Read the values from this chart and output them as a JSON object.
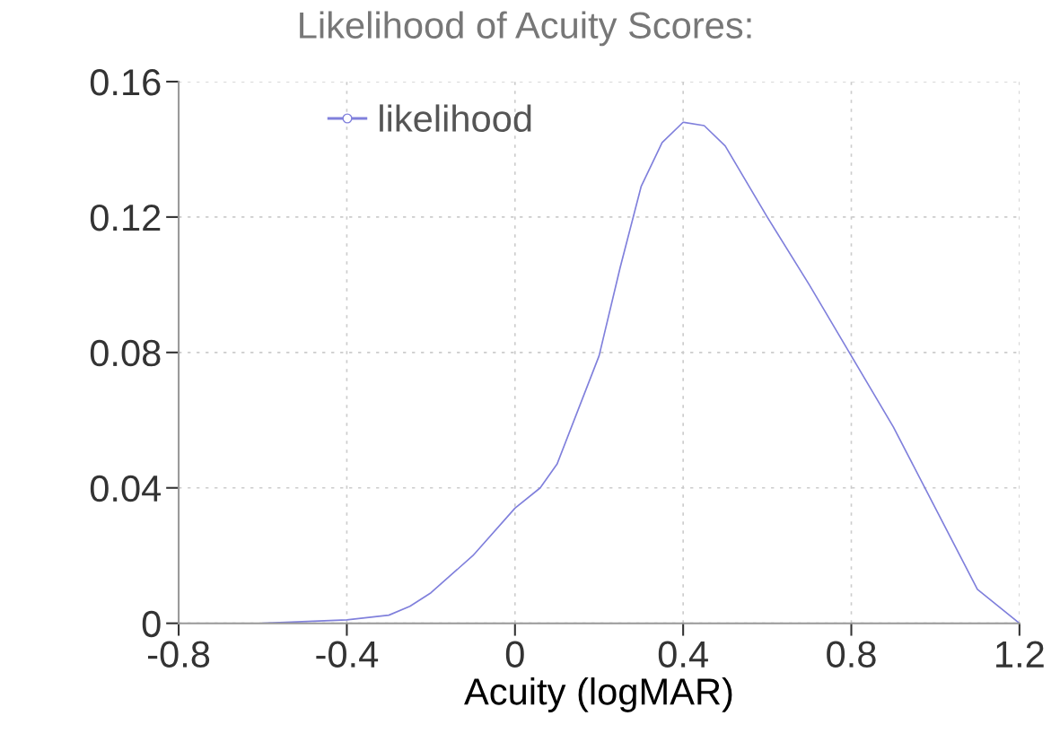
{
  "chart_data": {
    "type": "line",
    "title": "Likelihood of Acuity Scores:",
    "xlabel": "Acuity (logMAR)",
    "series": [
      {
        "name": "likelihood",
        "color": "#8080dc",
        "x": [
          -0.6,
          -0.4,
          -0.3,
          -0.25,
          -0.2,
          -0.1,
          0,
          0.06,
          0.1,
          0.2,
          0.25,
          0.3,
          0.35,
          0.4,
          0.45,
          0.5,
          0.6,
          0.7,
          0.8,
          0.9,
          1.0,
          1.1,
          1.2
        ],
        "values": [
          0,
          0.001,
          0.0024,
          0.005,
          0.009,
          0.02,
          0.034,
          0.04,
          0.047,
          0.079,
          0.105,
          0.129,
          0.142,
          0.148,
          0.147,
          0.141,
          0.12,
          0.1,
          0.079,
          0.058,
          0.034,
          0.01,
          0
        ]
      }
    ],
    "xlim": [
      -0.8,
      1.2
    ],
    "xticks": [
      -0.8,
      -0.4,
      0,
      0.4,
      0.8,
      1.2
    ],
    "ylim": [
      0,
      0.16
    ],
    "yticks": [
      0,
      0.04,
      0.08,
      0.12,
      0.16
    ],
    "grid": true,
    "legend": "top",
    "line_style": "solid"
  }
}
